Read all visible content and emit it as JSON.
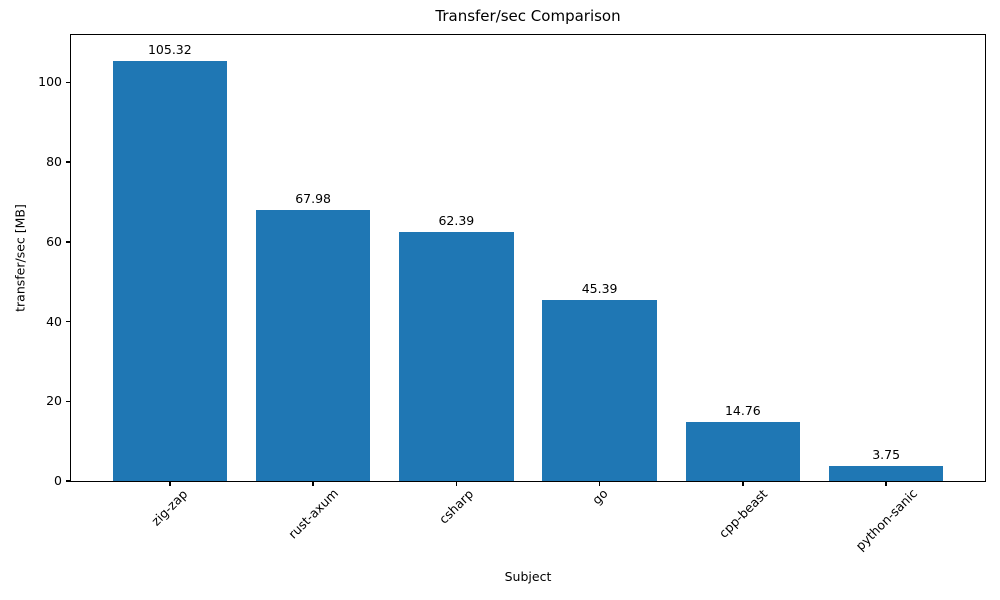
{
  "chart_data": {
    "type": "bar",
    "title": "Transfer/sec Comparison",
    "xlabel": "Subject",
    "ylabel": "transfer/sec [MB]",
    "categories": [
      "zig-zap",
      "rust-axum",
      "csharp",
      "go",
      "cpp-beast",
      "python-sanic"
    ],
    "values": [
      105.32,
      67.98,
      62.39,
      45.39,
      14.76,
      3.75
    ],
    "value_labels": [
      "105.32",
      "67.98",
      "62.39",
      "45.39",
      "14.76",
      "3.75"
    ],
    "yticks": [
      0,
      20,
      40,
      60,
      80,
      100
    ],
    "ylim": [
      0,
      111.9
    ],
    "bar_color": "#1f77b4",
    "grid": false,
    "legend": null,
    "xtick_rotation_deg": 45
  }
}
